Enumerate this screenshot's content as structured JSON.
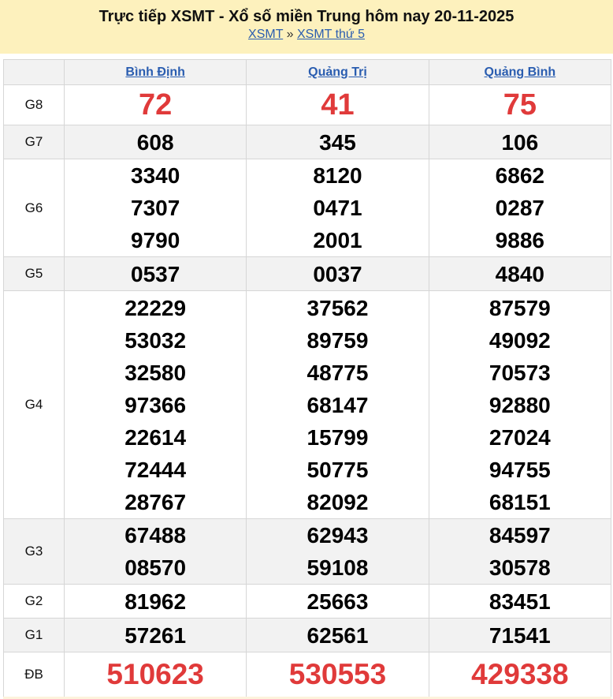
{
  "header": {
    "title": "Trực tiếp XSMT - Xổ số miền Trung hôm nay 20-11-2025",
    "breadcrumb": [
      "XSMT",
      "XSMT thứ 5"
    ],
    "separator": "»"
  },
  "provinces": [
    "Bình Định",
    "Quảng Trị",
    "Quảng Bình"
  ],
  "colors": {
    "header_bg": "#fdf1bd",
    "link": "#2a5db0",
    "highlight": "#e03a3a",
    "row_alt": "#f2f2f2"
  },
  "prizes": [
    {
      "label": "G8",
      "values": [
        [
          "72"
        ],
        [
          "41"
        ],
        [
          "75"
        ]
      ]
    },
    {
      "label": "G7",
      "values": [
        [
          "608"
        ],
        [
          "345"
        ],
        [
          "106"
        ]
      ]
    },
    {
      "label": "G6",
      "values": [
        [
          "3340",
          "7307",
          "9790"
        ],
        [
          "8120",
          "0471",
          "2001"
        ],
        [
          "6862",
          "0287",
          "9886"
        ]
      ]
    },
    {
      "label": "G5",
      "values": [
        [
          "0537"
        ],
        [
          "0037"
        ],
        [
          "4840"
        ]
      ]
    },
    {
      "label": "G4",
      "values": [
        [
          "22229",
          "53032",
          "32580",
          "97366",
          "22614",
          "72444",
          "28767"
        ],
        [
          "37562",
          "89759",
          "48775",
          "68147",
          "15799",
          "50775",
          "82092"
        ],
        [
          "87579",
          "49092",
          "70573",
          "92880",
          "27024",
          "94755",
          "68151"
        ]
      ]
    },
    {
      "label": "G3",
      "values": [
        [
          "67488",
          "08570"
        ],
        [
          "62943",
          "59108"
        ],
        [
          "84597",
          "30578"
        ]
      ]
    },
    {
      "label": "G2",
      "values": [
        [
          "81962"
        ],
        [
          "25663"
        ],
        [
          "83451"
        ]
      ]
    },
    {
      "label": "G1",
      "values": [
        [
          "57261"
        ],
        [
          "62561"
        ],
        [
          "71541"
        ]
      ]
    },
    {
      "label": "ĐB",
      "values": [
        [
          "510623"
        ],
        [
          "530553"
        ],
        [
          "429338"
        ]
      ]
    }
  ]
}
